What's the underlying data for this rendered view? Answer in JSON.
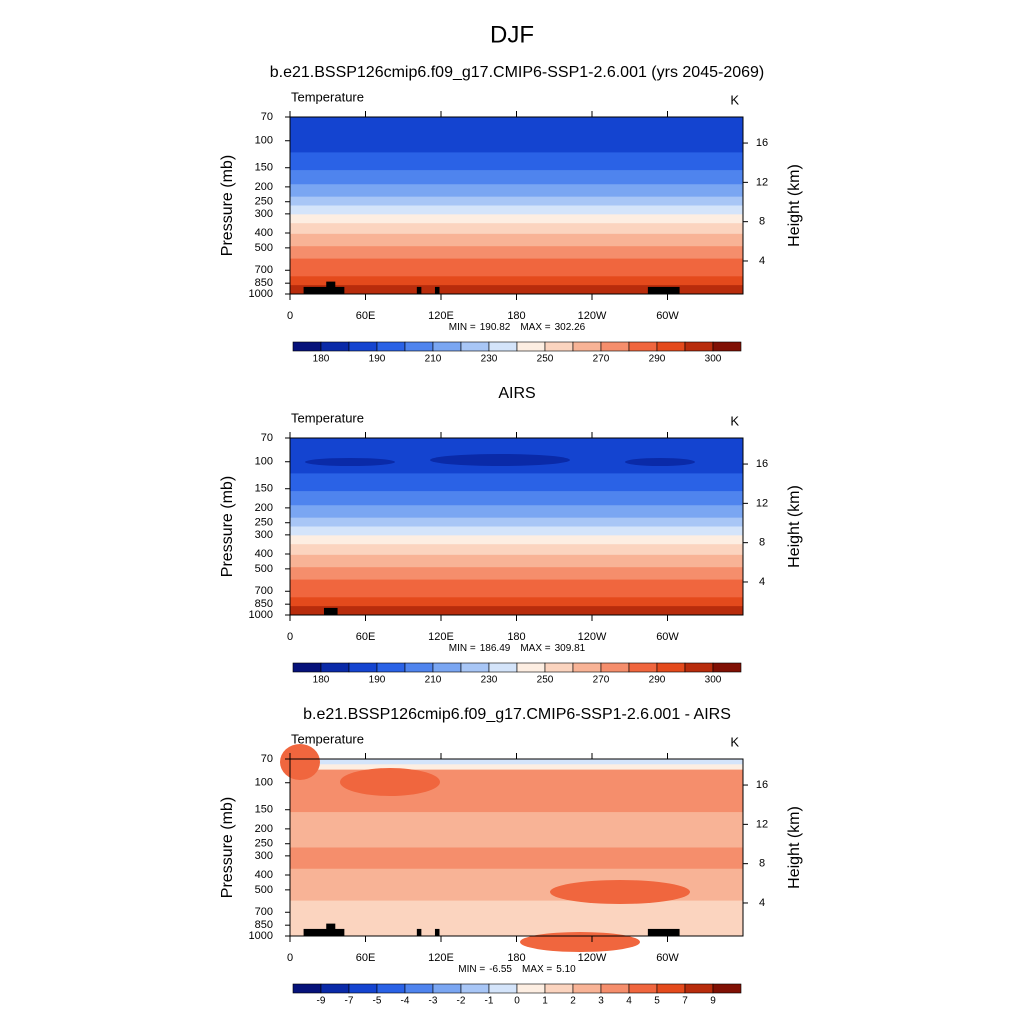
{
  "title": "DJF",
  "chart_data": [
    {
      "type": "contour",
      "title": "b.e21.BSSP126cmip6.f09_g17.CMIP6-SSP1-2.6.001 (yrs 2045-2069)",
      "left_label": "Temperature",
      "right_label": "K",
      "ylabel": "Pressure (mb)",
      "y2label": "Height (km)",
      "log_y": true,
      "ylim": [
        1000,
        70
      ],
      "yticks": [
        70,
        100,
        150,
        200,
        250,
        300,
        400,
        500,
        700,
        850,
        1000
      ],
      "y2lim": [
        0.64,
        18.65
      ],
      "y2ticks": [
        4,
        8,
        12,
        16
      ],
      "xlim": [
        0,
        360
      ],
      "xticks": [
        0,
        {
          "value": 60,
          "label": "60E"
        },
        {
          "value": 120,
          "label": "120E"
        },
        180,
        {
          "value": 240,
          "label": "120W"
        },
        {
          "value": 300,
          "label": "60W"
        }
      ],
      "stats": [
        {
          "name": "MIN =",
          "value": 190.82
        },
        {
          "name": "MAX =",
          "value": 302.26
        }
      ],
      "colorbar": {
        "labels": [
          180,
          190,
          210,
          230,
          250,
          270,
          290,
          300
        ],
        "colors": [
          "#06127a",
          "#0a2aa8",
          "#1444d0",
          "#2a62e6",
          "#4f84ee",
          "#7aa6f2",
          "#a8c6f6",
          "#d4e4fa",
          "#fdeee2",
          "#fbd4bf",
          "#f8b396",
          "#f58e6c",
          "#f0663e",
          "#e44a1c",
          "#b82c0c",
          "#801004"
        ]
      }
    },
    {
      "type": "contour",
      "title": "AIRS",
      "left_label": "Temperature",
      "right_label": "K",
      "ylabel": "Pressure (mb)",
      "y2label": "Height (km)",
      "log_y": true,
      "ylim": [
        1000,
        70
      ],
      "yticks": [
        70,
        100,
        150,
        200,
        250,
        300,
        400,
        500,
        700,
        850,
        1000
      ],
      "y2lim": [
        0.64,
        18.65
      ],
      "y2ticks": [
        4,
        8,
        12,
        16
      ],
      "xlim": [
        0,
        360
      ],
      "xticks": [
        0,
        {
          "value": 60,
          "label": "60E"
        },
        {
          "value": 120,
          "label": "120E"
        },
        180,
        {
          "value": 240,
          "label": "120W"
        },
        {
          "value": 300,
          "label": "60W"
        }
      ],
      "stats": [
        {
          "name": "MIN =",
          "value": 186.49
        },
        {
          "name": "MAX =",
          "value": 309.81
        }
      ],
      "colorbar": {
        "labels": [
          180,
          190,
          210,
          230,
          250,
          270,
          290,
          300
        ],
        "colors": [
          "#06127a",
          "#0a2aa8",
          "#1444d0",
          "#2a62e6",
          "#4f84ee",
          "#7aa6f2",
          "#a8c6f6",
          "#d4e4fa",
          "#fdeee2",
          "#fbd4bf",
          "#f8b396",
          "#f58e6c",
          "#f0663e",
          "#e44a1c",
          "#b82c0c",
          "#801004"
        ]
      }
    },
    {
      "type": "contour",
      "title": "b.e21.BSSP126cmip6.f09_g17.CMIP6-SSP1-2.6.001 - AIRS",
      "left_label": "Temperature",
      "right_label": "K",
      "ylabel": "Pressure (mb)",
      "y2label": "Height (km)",
      "log_y": true,
      "ylim": [
        1000,
        70
      ],
      "yticks": [
        70,
        100,
        150,
        200,
        250,
        300,
        400,
        500,
        700,
        850,
        1000
      ],
      "y2lim": [
        0.64,
        18.65
      ],
      "y2ticks": [
        4,
        8,
        12,
        16
      ],
      "xlim": [
        0,
        360
      ],
      "xticks": [
        0,
        {
          "value": 60,
          "label": "60E"
        },
        {
          "value": 120,
          "label": "120E"
        },
        180,
        {
          "value": 240,
          "label": "120W"
        },
        {
          "value": 300,
          "label": "60W"
        }
      ],
      "stats": [
        {
          "name": "MIN =",
          "value": -6.55
        },
        {
          "name": "MAX =",
          "value": 5.1,
          "label": "5.10"
        }
      ],
      "colorbar": {
        "labels": [
          -9,
          -7,
          -5,
          -4,
          -3,
          -2,
          -1,
          0,
          1,
          2,
          3,
          4,
          5,
          7,
          9
        ],
        "colors": [
          "#06127a",
          "#0a2aa8",
          "#1444d0",
          "#2a62e6",
          "#4f84ee",
          "#7aa6f2",
          "#a8c6f6",
          "#d4e4fa",
          "#fdeee2",
          "#fbd4bf",
          "#f8b396",
          "#f58e6c",
          "#f0663e",
          "#e44a1c",
          "#b82c0c",
          "#801004"
        ]
      }
    }
  ]
}
